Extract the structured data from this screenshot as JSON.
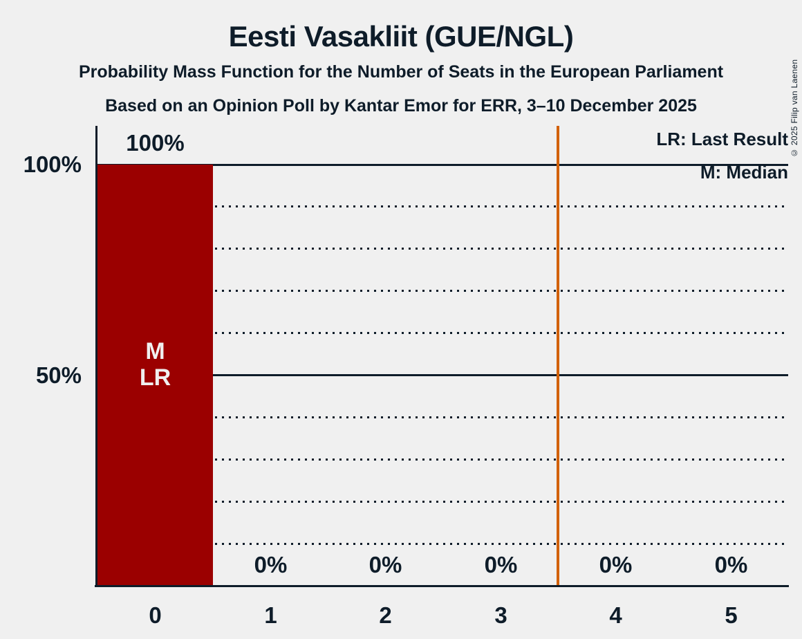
{
  "header": {
    "title": "Eesti Vasakliit (GUE/NGL)",
    "subtitle": "Probability Mass Function for the Number of Seats in the European Parliament",
    "poll_line": "Based on an Opinion Poll by Kantar Emor for ERR, 3–10 December 2025"
  },
  "legend": {
    "last_result": "LR: Last Result",
    "median": "M: Median"
  },
  "y_axis": {
    "label_100": "100%",
    "label_50": "50%"
  },
  "copyright": "© 2025 Filip van Laenen",
  "chart_data": {
    "type": "bar",
    "title": "Eesti Vasakliit (GUE/NGL)",
    "categories": [
      "0",
      "1",
      "2",
      "3",
      "4",
      "5"
    ],
    "values": [
      100,
      0,
      0,
      0,
      0,
      0
    ],
    "bar_labels": [
      "100%",
      "0%",
      "0%",
      "0%",
      "0%",
      "0%"
    ],
    "ylim": [
      0,
      100
    ],
    "y_tick_labels": [
      "100%",
      "50%"
    ],
    "gridlines": {
      "solid_at": [
        100,
        50
      ],
      "dotted_step": 10
    },
    "legend_position": "top-right",
    "median_bar": 0,
    "last_result_bar": 0,
    "in_bar_annotation_lines": [
      "M",
      "LR"
    ],
    "threshold_line_x": 3.5,
    "colors": {
      "bar": "#9B0000",
      "threshold_line": "#D2610A",
      "ink": "#0E1C29",
      "background": "#F0F0F0",
      "in_bar_text": "#F0F0F0"
    }
  }
}
